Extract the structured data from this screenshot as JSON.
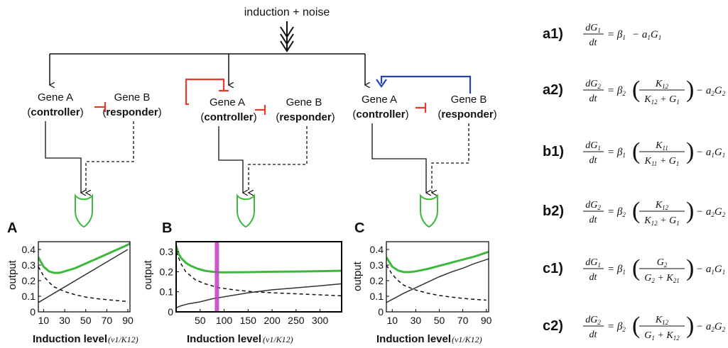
{
  "top_label": "induction + noise",
  "circuits": [
    {
      "gene_a": "Gene A",
      "gene_a_role": "controller",
      "gene_b": "Gene B",
      "gene_b_role": "responder"
    },
    {
      "gene_a": "Gene A",
      "gene_a_role": "controller",
      "gene_b": "Gene B",
      "gene_b_role": "responder"
    },
    {
      "gene_a": "Gene A",
      "gene_a_role": "controller",
      "gene_b": "Gene B",
      "gene_b_role": "responder"
    }
  ],
  "colors": {
    "repression": "#e8392b",
    "activation": "#2541b2",
    "output_gate": "#3cb83c",
    "marker": "#c03cc0",
    "axis": "#000000"
  },
  "panels": [
    {
      "letter": "A",
      "ylabel": "output",
      "xlabel": "Induction level",
      "xlabel_math": "(ν1/K12)"
    },
    {
      "letter": "B",
      "ylabel": "output",
      "xlabel": "Induction level",
      "xlabel_math": "(ν1/K12)"
    },
    {
      "letter": "C",
      "ylabel": "output",
      "xlabel": "Induction level",
      "xlabel_math": "(ν1/K12)"
    }
  ],
  "chart_data": [
    {
      "type": "line",
      "panel": "A",
      "xlim": [
        5,
        92
      ],
      "ylim": [
        0,
        0.45
      ],
      "xticks": [
        "10",
        "30",
        "50",
        "70",
        "90"
      ],
      "xtick_values": [
        10,
        30,
        50,
        70,
        90
      ],
      "yticks": [
        "0",
        "0.1",
        "0.2",
        "0.3",
        "0.4"
      ],
      "ytick_values": [
        0,
        0.1,
        0.2,
        0.3,
        0.4
      ],
      "ylabel": "output",
      "series": [
        {
          "x": [
            5,
            10,
            15,
            20,
            25,
            30,
            40,
            50,
            60,
            70,
            80,
            90,
            92
          ],
          "y": [
            0.35,
            0.29,
            0.26,
            0.25,
            0.25,
            0.26,
            0.28,
            0.31,
            0.34,
            0.37,
            0.4,
            0.43,
            0.44
          ],
          "color": "#3cb83c",
          "style": "solid",
          "width": 3
        },
        {
          "x": [
            5,
            90
          ],
          "y": [
            0.06,
            0.4
          ],
          "color": "#333333",
          "style": "solid",
          "width": 1.5
        },
        {
          "x": [
            5,
            10,
            15,
            20,
            30,
            40,
            50,
            60,
            70,
            80,
            90
          ],
          "y": [
            0.29,
            0.23,
            0.19,
            0.16,
            0.13,
            0.11,
            0.095,
            0.085,
            0.078,
            0.072,
            0.067
          ],
          "color": "#111111",
          "style": "dashed",
          "width": 1.5
        }
      ]
    },
    {
      "type": "line",
      "panel": "B",
      "xlim": [
        0,
        345
      ],
      "ylim": [
        0,
        0.35
      ],
      "xticks": [
        "50",
        "100",
        "150",
        "200",
        "250",
        "300"
      ],
      "xtick_values": [
        50,
        100,
        150,
        200,
        250,
        300
      ],
      "yticks": [
        "0",
        "0.1",
        "0.2",
        "0.3"
      ],
      "ytick_values": [
        0,
        0.1,
        0.2,
        0.3
      ],
      "ylabel": "output",
      "marker_x": 85,
      "series": [
        {
          "x": [
            0,
            5,
            10,
            20,
            30,
            45,
            60,
            75,
            90,
            100,
            150,
            200,
            250,
            300,
            345
          ],
          "y": [
            0.33,
            0.29,
            0.27,
            0.245,
            0.23,
            0.215,
            0.205,
            0.2,
            0.197,
            0.197,
            0.198,
            0.2,
            0.201,
            0.203,
            0.205
          ],
          "color": "#3cb83c",
          "style": "solid",
          "width": 3
        },
        {
          "x": [
            0,
            10,
            25,
            50,
            75,
            100,
            150,
            200,
            250,
            300,
            345
          ],
          "y": [
            0.02,
            0.03,
            0.04,
            0.05,
            0.065,
            0.075,
            0.095,
            0.11,
            0.12,
            0.13,
            0.14
          ],
          "color": "#333333",
          "style": "solid",
          "width": 1.5
        },
        {
          "x": [
            0,
            10,
            20,
            40,
            60,
            90,
            120,
            160,
            200,
            250,
            300,
            345
          ],
          "y": [
            0.3,
            0.24,
            0.2,
            0.16,
            0.14,
            0.12,
            0.11,
            0.1,
            0.095,
            0.09,
            0.085,
            0.08
          ],
          "color": "#111111",
          "style": "dashed",
          "width": 1.5
        }
      ]
    },
    {
      "type": "line",
      "panel": "C",
      "xlim": [
        5,
        92
      ],
      "ylim": [
        0,
        0.45
      ],
      "xticks": [
        "10",
        "30",
        "50",
        "70",
        "90"
      ],
      "xtick_values": [
        10,
        30,
        50,
        70,
        90
      ],
      "yticks": [
        "0",
        "0.1",
        "0.2",
        "0.3",
        "0.4"
      ],
      "ytick_values": [
        0,
        0.1,
        0.2,
        0.3,
        0.4
      ],
      "ylabel": "output",
      "series": [
        {
          "x": [
            5,
            10,
            15,
            20,
            25,
            30,
            40,
            50,
            60,
            70,
            80,
            90,
            92
          ],
          "y": [
            0.35,
            0.29,
            0.265,
            0.255,
            0.255,
            0.26,
            0.275,
            0.295,
            0.315,
            0.335,
            0.355,
            0.38,
            0.385
          ],
          "color": "#3cb83c",
          "style": "solid",
          "width": 3
        },
        {
          "x": [
            5,
            10,
            20,
            30,
            40,
            50,
            60,
            70,
            80,
            90,
            92
          ],
          "y": [
            0.06,
            0.08,
            0.12,
            0.155,
            0.19,
            0.225,
            0.255,
            0.28,
            0.31,
            0.335,
            0.34
          ],
          "color": "#333333",
          "style": "solid",
          "width": 1.5
        },
        {
          "x": [
            5,
            10,
            15,
            20,
            30,
            40,
            50,
            60,
            70,
            80,
            90
          ],
          "y": [
            0.3,
            0.24,
            0.2,
            0.17,
            0.14,
            0.12,
            0.105,
            0.095,
            0.087,
            0.08,
            0.075
          ],
          "color": "#111111",
          "style": "dashed",
          "width": 1.5
        }
      ]
    }
  ],
  "equations": [
    {
      "label": "a1)",
      "lhs_num": "dG",
      "lhs_sub": "1",
      "lhs_den": "dt",
      "beta_sub": "1",
      "frac_num": "",
      "frac_num_sub": "",
      "frac_den": "",
      "frac_den_sub1": "",
      "frac_den_mid": "",
      "frac_den_sub2": "",
      "a_sub": "1",
      "g_sub": "1",
      "has_frac": false
    },
    {
      "label": "a2)",
      "lhs_num": "dG",
      "lhs_sub": "2",
      "lhs_den": "dt",
      "beta_sub": "2",
      "frac_num": "K",
      "frac_num_sub": "12",
      "frac_den": "K",
      "frac_den_sub1": "12",
      "frac_den_mid": " + G",
      "frac_den_sub2": "1",
      "a_sub": "2",
      "g_sub": "2",
      "has_frac": true
    },
    {
      "label": "b1)",
      "lhs_num": "dG",
      "lhs_sub": "1",
      "lhs_den": "dt",
      "beta_sub": "1",
      "frac_num": "K",
      "frac_num_sub": "11",
      "frac_den": "K",
      "frac_den_sub1": "11",
      "frac_den_mid": " + G",
      "frac_den_sub2": "1",
      "a_sub": "1",
      "g_sub": "1",
      "has_frac": true
    },
    {
      "label": "b2)",
      "lhs_num": "dG",
      "lhs_sub": "2",
      "lhs_den": "dt",
      "beta_sub": "2",
      "frac_num": "K",
      "frac_num_sub": "12",
      "frac_den": "K",
      "frac_den_sub1": "12",
      "frac_den_mid": " + G",
      "frac_den_sub2": "1",
      "a_sub": "2",
      "g_sub": "2",
      "has_frac": true
    },
    {
      "label": "c1)",
      "lhs_num": "dG",
      "lhs_sub": "1",
      "lhs_den": "dt",
      "beta_sub": "1",
      "frac_num": "G",
      "frac_num_sub": "2",
      "frac_den": "G",
      "frac_den_sub1": "2",
      "frac_den_mid": " + K",
      "frac_den_sub2": "21",
      "a_sub": "1",
      "g_sub": "1",
      "has_frac": true
    },
    {
      "label": "c2)",
      "lhs_num": "dG",
      "lhs_sub": "2",
      "lhs_den": "dt",
      "beta_sub": "2",
      "frac_num": "K",
      "frac_num_sub": "12",
      "frac_den": "G",
      "frac_den_sub1": "1",
      "frac_den_mid": " + K",
      "frac_den_sub2": "12",
      "a_sub": "2",
      "g_sub": "2",
      "has_frac": true
    }
  ]
}
